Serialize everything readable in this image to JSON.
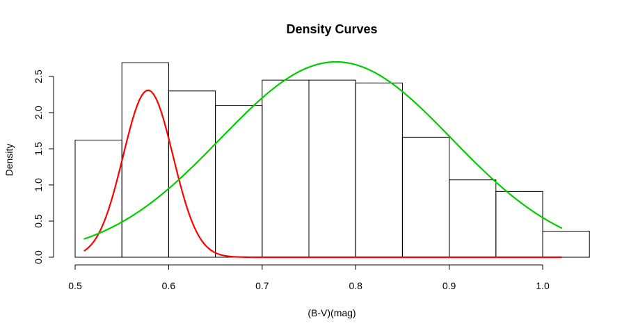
{
  "chart_data": {
    "type": "histogram",
    "title": "Density Curves",
    "xlabel": "(B-V)(mag)",
    "ylabel": "Density",
    "xlim": [
      0.5,
      1.05
    ],
    "ylim": [
      0,
      2.7
    ],
    "x_ticks": [
      "0.5",
      "0.6",
      "0.7",
      "0.8",
      "0.9",
      "1.0"
    ],
    "y_ticks": [
      "0.0",
      "0.5",
      "1.0",
      "1.5",
      "2.0",
      "2.5"
    ],
    "bins": [
      {
        "x0": 0.5,
        "x1": 0.55,
        "density": 1.62
      },
      {
        "x0": 0.55,
        "x1": 0.6,
        "density": 2.69
      },
      {
        "x0": 0.6,
        "x1": 0.65,
        "density": 2.3
      },
      {
        "x0": 0.65,
        "x1": 0.7,
        "density": 2.1
      },
      {
        "x0": 0.7,
        "x1": 0.75,
        "density": 2.45
      },
      {
        "x0": 0.75,
        "x1": 0.8,
        "density": 2.45
      },
      {
        "x0": 0.8,
        "x1": 0.85,
        "density": 2.41
      },
      {
        "x0": 0.85,
        "x1": 0.9,
        "density": 1.66
      },
      {
        "x0": 0.9,
        "x1": 0.95,
        "density": 1.07
      },
      {
        "x0": 0.95,
        "x1": 1.0,
        "density": 0.91
      },
      {
        "x0": 1.0,
        "x1": 1.05,
        "density": 0.36
      }
    ],
    "series": [
      {
        "type": "normal_curve",
        "color": "#ff0000",
        "mean": 0.578,
        "sd": 0.0267,
        "weight": 0.1546,
        "x_range": [
          0.51,
          1.02
        ]
      },
      {
        "type": "normal_curve",
        "color": "#00cd00",
        "mean": 0.779,
        "sd": 0.1237,
        "weight": 0.8377,
        "x_range": [
          0.51,
          1.02
        ]
      }
    ],
    "grid": false
  }
}
